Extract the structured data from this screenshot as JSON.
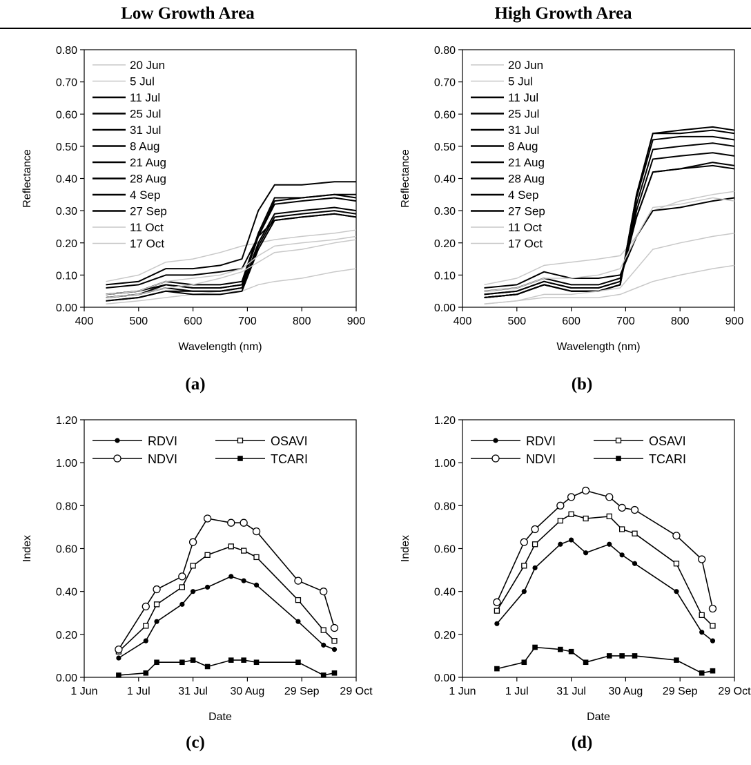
{
  "header": {
    "left_title": "Low Growth Area",
    "right_title": "High Growth Area"
  },
  "chart_data": [
    {
      "type": "line",
      "panel_label": "(a)",
      "xlabel": "Wavelength (nm)",
      "ylabel": "Reflectance",
      "xlim": [
        400,
        900
      ],
      "ylim": [
        0,
        0.8
      ],
      "xticks": [
        400,
        500,
        600,
        700,
        800,
        900
      ],
      "xtick_labels": [
        "400",
        "500",
        "600",
        "700",
        "800",
        "900"
      ],
      "yticks": [
        0,
        0.1,
        0.2,
        0.3,
        0.4,
        0.5,
        0.6,
        0.7,
        0.8
      ],
      "ytick_labels": [
        "0.00",
        "0.10",
        "0.20",
        "0.30",
        "0.40",
        "0.50",
        "0.60",
        "0.70",
        "0.80"
      ],
      "legend_placement": "top-left",
      "grid": false,
      "series": [
        {
          "name": "20 Jun",
          "color": "#c8c8c8",
          "x": [
            440,
            500,
            550,
            600,
            650,
            690,
            720,
            750,
            800,
            860,
            900
          ],
          "y": [
            0.08,
            0.1,
            0.14,
            0.15,
            0.17,
            0.19,
            0.2,
            0.21,
            0.22,
            0.23,
            0.24
          ]
        },
        {
          "name": "5 Jul",
          "color": "#c8c8c8",
          "x": [
            440,
            500,
            550,
            600,
            650,
            690,
            720,
            750,
            800,
            860,
            900
          ],
          "y": [
            0.01,
            0.02,
            0.03,
            0.04,
            0.05,
            0.05,
            0.07,
            0.08,
            0.09,
            0.11,
            0.12
          ]
        },
        {
          "name": "11 Jul",
          "color": "#000000",
          "x": [
            440,
            500,
            550,
            600,
            650,
            690,
            720,
            750,
            800,
            860,
            900
          ],
          "y": [
            0.02,
            0.03,
            0.05,
            0.04,
            0.04,
            0.05,
            0.18,
            0.27,
            0.28,
            0.29,
            0.28
          ]
        },
        {
          "name": "25 Jul",
          "color": "#000000",
          "x": [
            440,
            500,
            550,
            600,
            650,
            690,
            720,
            750,
            800,
            860,
            900
          ],
          "y": [
            0.03,
            0.04,
            0.06,
            0.05,
            0.05,
            0.06,
            0.2,
            0.29,
            0.3,
            0.31,
            0.3
          ]
        },
        {
          "name": "31 Jul",
          "color": "#000000",
          "x": [
            440,
            500,
            550,
            600,
            650,
            690,
            720,
            750,
            800,
            860,
            900
          ],
          "y": [
            0.04,
            0.05,
            0.07,
            0.06,
            0.06,
            0.07,
            0.22,
            0.33,
            0.34,
            0.35,
            0.34
          ]
        },
        {
          "name": "8 Aug",
          "color": "#000000",
          "x": [
            440,
            500,
            550,
            600,
            650,
            690,
            720,
            750,
            800,
            860,
            900
          ],
          "y": [
            0.04,
            0.05,
            0.08,
            0.07,
            0.07,
            0.08,
            0.23,
            0.34,
            0.34,
            0.35,
            0.35
          ]
        },
        {
          "name": "21 Aug",
          "color": "#000000",
          "x": [
            440,
            500,
            550,
            600,
            650,
            690,
            720,
            750,
            800,
            860,
            900
          ],
          "y": [
            0.07,
            0.08,
            0.12,
            0.12,
            0.13,
            0.15,
            0.3,
            0.38,
            0.38,
            0.39,
            0.39
          ]
        },
        {
          "name": "28 Aug",
          "color": "#000000",
          "x": [
            440,
            500,
            550,
            600,
            650,
            690,
            720,
            750,
            800,
            860,
            900
          ],
          "y": [
            0.03,
            0.04,
            0.07,
            0.06,
            0.06,
            0.07,
            0.22,
            0.32,
            0.33,
            0.34,
            0.33
          ]
        },
        {
          "name": "4 Sep",
          "color": "#000000",
          "x": [
            440,
            500,
            550,
            600,
            650,
            690,
            720,
            750,
            800,
            860,
            900
          ],
          "y": [
            0.02,
            0.03,
            0.05,
            0.05,
            0.05,
            0.06,
            0.19,
            0.28,
            0.29,
            0.3,
            0.29
          ]
        },
        {
          "name": "27 Sep",
          "color": "#000000",
          "x": [
            440,
            500,
            550,
            600,
            650,
            690,
            720,
            750,
            800,
            860,
            900
          ],
          "y": [
            0.06,
            0.07,
            0.1,
            0.1,
            0.11,
            0.12,
            0.22,
            0.27,
            0.28,
            0.29,
            0.28
          ]
        },
        {
          "name": "11 Oct",
          "color": "#c8c8c8",
          "x": [
            440,
            500,
            550,
            600,
            650,
            690,
            720,
            750,
            800,
            860,
            900
          ],
          "y": [
            0.03,
            0.04,
            0.06,
            0.07,
            0.09,
            0.11,
            0.14,
            0.17,
            0.18,
            0.2,
            0.21
          ]
        },
        {
          "name": "17 Oct",
          "color": "#c8c8c8",
          "x": [
            440,
            500,
            550,
            600,
            650,
            690,
            720,
            750,
            800,
            860,
            900
          ],
          "y": [
            0.04,
            0.05,
            0.08,
            0.09,
            0.1,
            0.12,
            0.16,
            0.19,
            0.2,
            0.21,
            0.22
          ]
        }
      ]
    },
    {
      "type": "line",
      "panel_label": "(b)",
      "xlabel": "Wavelength (nm)",
      "ylabel": "Reflectance",
      "xlim": [
        400,
        900
      ],
      "ylim": [
        0,
        0.8
      ],
      "xticks": [
        400,
        500,
        600,
        700,
        800,
        900
      ],
      "xtick_labels": [
        "400",
        "500",
        "600",
        "700",
        "800",
        "900"
      ],
      "yticks": [
        0,
        0.1,
        0.2,
        0.3,
        0.4,
        0.5,
        0.6,
        0.7,
        0.8
      ],
      "ytick_labels": [
        "0.00",
        "0.10",
        "0.20",
        "0.30",
        "0.40",
        "0.50",
        "0.60",
        "0.70",
        "0.80"
      ],
      "legend_placement": "top-left",
      "grid": false,
      "series": [
        {
          "name": "20 Jun",
          "color": "#c8c8c8",
          "x": [
            440,
            500,
            550,
            600,
            650,
            690,
            720,
            750,
            800,
            860,
            900
          ],
          "y": [
            0.07,
            0.09,
            0.13,
            0.14,
            0.15,
            0.16,
            0.22,
            0.3,
            0.33,
            0.35,
            0.36
          ]
        },
        {
          "name": "5 Jul",
          "color": "#c8c8c8",
          "x": [
            440,
            500,
            550,
            600,
            650,
            690,
            720,
            750,
            800,
            860,
            900
          ],
          "y": [
            0.01,
            0.02,
            0.03,
            0.03,
            0.03,
            0.04,
            0.06,
            0.08,
            0.1,
            0.12,
            0.13
          ]
        },
        {
          "name": "11 Jul",
          "color": "#000000",
          "x": [
            440,
            500,
            550,
            600,
            650,
            690,
            720,
            750,
            800,
            860,
            900
          ],
          "y": [
            0.03,
            0.04,
            0.07,
            0.05,
            0.05,
            0.07,
            0.35,
            0.54,
            0.54,
            0.55,
            0.54
          ]
        },
        {
          "name": "25 Jul",
          "color": "#000000",
          "x": [
            440,
            500,
            550,
            600,
            650,
            690,
            720,
            750,
            800,
            860,
            900
          ],
          "y": [
            0.03,
            0.04,
            0.07,
            0.05,
            0.05,
            0.07,
            0.35,
            0.54,
            0.55,
            0.56,
            0.55
          ]
        },
        {
          "name": "31 Jul",
          "color": "#000000",
          "x": [
            440,
            500,
            550,
            600,
            650,
            690,
            720,
            750,
            800,
            860,
            900
          ],
          "y": [
            0.03,
            0.04,
            0.07,
            0.05,
            0.05,
            0.07,
            0.34,
            0.52,
            0.53,
            0.53,
            0.52
          ]
        },
        {
          "name": "8 Aug",
          "color": "#000000",
          "x": [
            440,
            500,
            550,
            600,
            650,
            690,
            720,
            750,
            800,
            860,
            900
          ],
          "y": [
            0.03,
            0.04,
            0.07,
            0.05,
            0.05,
            0.07,
            0.32,
            0.49,
            0.5,
            0.51,
            0.5
          ]
        },
        {
          "name": "21 Aug",
          "color": "#000000",
          "x": [
            440,
            500,
            550,
            600,
            650,
            690,
            720,
            750,
            800,
            860,
            900
          ],
          "y": [
            0.04,
            0.05,
            0.08,
            0.06,
            0.06,
            0.08,
            0.3,
            0.46,
            0.47,
            0.48,
            0.47
          ]
        },
        {
          "name": "28 Aug",
          "color": "#000000",
          "x": [
            440,
            500,
            550,
            600,
            650,
            690,
            720,
            750,
            800,
            860,
            900
          ],
          "y": [
            0.04,
            0.05,
            0.08,
            0.06,
            0.06,
            0.08,
            0.28,
            0.42,
            0.43,
            0.44,
            0.43
          ]
        },
        {
          "name": "4 Sep",
          "color": "#000000",
          "x": [
            440,
            500,
            550,
            600,
            650,
            690,
            720,
            750,
            800,
            860,
            900
          ],
          "y": [
            0.05,
            0.06,
            0.09,
            0.07,
            0.07,
            0.09,
            0.28,
            0.42,
            0.43,
            0.45,
            0.44
          ]
        },
        {
          "name": "27 Sep",
          "color": "#000000",
          "x": [
            440,
            500,
            550,
            600,
            650,
            690,
            720,
            750,
            800,
            860,
            900
          ],
          "y": [
            0.06,
            0.07,
            0.11,
            0.09,
            0.09,
            0.1,
            0.22,
            0.3,
            0.31,
            0.33,
            0.34
          ]
        },
        {
          "name": "11 Oct",
          "color": "#c8c8c8",
          "x": [
            440,
            500,
            550,
            600,
            650,
            690,
            720,
            750,
            800,
            860,
            900
          ],
          "y": [
            0.01,
            0.02,
            0.04,
            0.04,
            0.05,
            0.06,
            0.12,
            0.18,
            0.2,
            0.22,
            0.23
          ]
        },
        {
          "name": "17 Oct",
          "color": "#c8c8c8",
          "x": [
            440,
            500,
            550,
            600,
            650,
            690,
            720,
            750,
            800,
            860,
            900
          ],
          "y": [
            0.05,
            0.06,
            0.09,
            0.09,
            0.1,
            0.12,
            0.22,
            0.31,
            0.32,
            0.34,
            0.33
          ]
        }
      ]
    },
    {
      "type": "line",
      "panel_label": "(c)",
      "xlabel": "Date",
      "ylabel": "Index",
      "xlim": [
        "1 Jun",
        "29 Oct"
      ],
      "ylim": [
        0,
        1.2
      ],
      "xtick_labels": [
        "1 Jun",
        "1 Jul",
        "31 Jul",
        "30 Aug",
        "29 Sep",
        "29 Oct"
      ],
      "ytick_labels": [
        "0.00",
        "0.20",
        "0.40",
        "0.60",
        "0.80",
        "1.00",
        "1.20"
      ],
      "yticks": [
        0,
        0.2,
        0.4,
        0.6,
        0.8,
        1.0,
        1.2
      ],
      "legend_placement": "top",
      "grid": false,
      "x": [
        "20 Jun",
        "5 Jul",
        "11 Jul",
        "25 Jul",
        "31 Jul",
        "8 Aug",
        "21 Aug",
        "28 Aug",
        "4 Sep",
        "27 Sep",
        "11 Oct",
        "17 Oct"
      ],
      "series": [
        {
          "name": "RDVI",
          "marker": "dot",
          "values": [
            0.09,
            0.17,
            0.26,
            0.34,
            0.4,
            0.42,
            0.47,
            0.45,
            0.43,
            0.26,
            0.15,
            0.13
          ]
        },
        {
          "name": "OSAVI",
          "marker": "square-open",
          "values": [
            0.12,
            0.24,
            0.34,
            0.42,
            0.52,
            0.57,
            0.61,
            0.59,
            0.56,
            0.36,
            0.22,
            0.17
          ]
        },
        {
          "name": "NDVI",
          "marker": "circle-open",
          "values": [
            0.13,
            0.33,
            0.41,
            0.47,
            0.63,
            0.74,
            0.72,
            0.72,
            0.68,
            0.45,
            0.4,
            0.23
          ]
        },
        {
          "name": "TCARI",
          "marker": "square",
          "values": [
            0.01,
            0.02,
            0.07,
            0.07,
            0.08,
            0.05,
            0.08,
            0.08,
            0.07,
            0.07,
            0.01,
            0.02
          ]
        }
      ]
    },
    {
      "type": "line",
      "panel_label": "(d)",
      "xlabel": "Date",
      "ylabel": "Index",
      "xlim": [
        "1 Jun",
        "29 Oct"
      ],
      "ylim": [
        0,
        1.2
      ],
      "xtick_labels": [
        "1 Jun",
        "1 Jul",
        "31 Jul",
        "30 Aug",
        "29 Sep",
        "29 Oct"
      ],
      "ytick_labels": [
        "0.00",
        "0.20",
        "0.40",
        "0.60",
        "0.80",
        "1.00",
        "1.20"
      ],
      "yticks": [
        0,
        0.2,
        0.4,
        0.6,
        0.8,
        1.0,
        1.2
      ],
      "legend_placement": "top",
      "grid": false,
      "x": [
        "20 Jun",
        "5 Jul",
        "11 Jul",
        "25 Jul",
        "31 Jul",
        "8 Aug",
        "21 Aug",
        "28 Aug",
        "4 Sep",
        "27 Sep",
        "11 Oct",
        "17 Oct"
      ],
      "series": [
        {
          "name": "RDVI",
          "marker": "dot",
          "values": [
            0.25,
            0.4,
            0.51,
            0.62,
            0.64,
            0.58,
            0.62,
            0.57,
            0.53,
            0.4,
            0.21,
            0.17
          ]
        },
        {
          "name": "OSAVI",
          "marker": "square-open",
          "values": [
            0.31,
            0.52,
            0.62,
            0.73,
            0.76,
            0.74,
            0.75,
            0.69,
            0.67,
            0.53,
            0.29,
            0.24
          ]
        },
        {
          "name": "NDVI",
          "marker": "circle-open",
          "values": [
            0.35,
            0.63,
            0.69,
            0.8,
            0.84,
            0.87,
            0.84,
            0.79,
            0.78,
            0.66,
            0.55,
            0.32
          ]
        },
        {
          "name": "TCARI",
          "marker": "square",
          "values": [
            0.04,
            0.07,
            0.14,
            0.13,
            0.12,
            0.07,
            0.1,
            0.1,
            0.1,
            0.08,
            0.02,
            0.03
          ]
        }
      ]
    }
  ]
}
